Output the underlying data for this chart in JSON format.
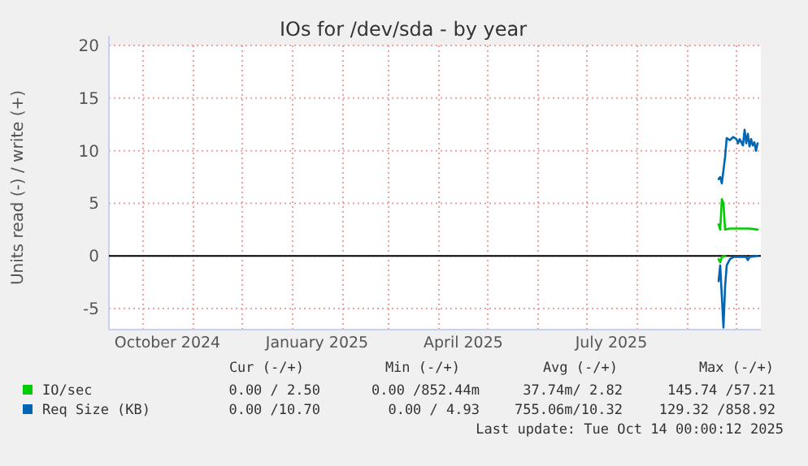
{
  "chart_data": {
    "type": "line",
    "title": "IOs for /dev/sda - by year",
    "ylabel": "Units read (-) / write (+)",
    "xlim": [
      "2024-09-10",
      "2025-10-16"
    ],
    "xticks": [
      {
        "value": "2024-10-01",
        "label": null
      },
      {
        "value": "2024-11-01",
        "label": null
      },
      {
        "value": "2024-12-01",
        "label": null
      },
      {
        "value": "2025-01-01",
        "label": null
      },
      {
        "value": "2025-02-01",
        "label": null
      },
      {
        "value": "2025-03-01",
        "label": null
      },
      {
        "value": "2025-04-01",
        "label": null
      },
      {
        "value": "2025-05-01",
        "label": null
      },
      {
        "value": "2025-06-01",
        "label": null
      },
      {
        "value": "2025-07-01",
        "label": null
      },
      {
        "value": "2025-08-01",
        "label": null
      },
      {
        "value": "2025-09-01",
        "label": null
      },
      {
        "value": "2025-10-01",
        "label": null
      },
      {
        "value": "2024-10-16",
        "label": "October 2024"
      },
      {
        "value": "2025-01-16",
        "label": "January 2025"
      },
      {
        "value": "2025-04-16",
        "label": "April 2025"
      },
      {
        "value": "2025-07-16",
        "label": "July 2025"
      }
    ],
    "ylim": [
      -7,
      20
    ],
    "yticks": [
      -5,
      0,
      5,
      10,
      15,
      20
    ],
    "grid": true,
    "legend": "bottom",
    "ref_lines": [
      {
        "axis": "y",
        "value": 0,
        "color": "#000000"
      }
    ],
    "series": [
      {
        "name": "IO/sec",
        "color": "#00cc00",
        "x": [
          "2025-09-20",
          "2025-09-21",
          "2025-09-22",
          "2025-09-23",
          "2025-09-24",
          "2025-09-27",
          "2025-10-01",
          "2025-10-05",
          "2025-10-09",
          "2025-10-14"
        ],
        "values": [
          3.0,
          2.5,
          5.4,
          5.0,
          2.5,
          2.6,
          2.6,
          2.6,
          2.6,
          2.5
        ]
      },
      {
        "color": "#00cc00",
        "x": [
          "2025-09-20",
          "2025-09-21",
          "2025-09-22",
          "2025-09-24"
        ],
        "values": [
          -0.3,
          -0.6,
          -0.1,
          0
        ]
      },
      {
        "name": "Req Size (KB)",
        "color": "#0066b3",
        "x": [
          "2025-09-20",
          "2025-09-21",
          "2025-09-22",
          "2025-09-24",
          "2025-09-25",
          "2025-09-27",
          "2025-09-29",
          "2025-10-01",
          "2025-10-02",
          "2025-10-03",
          "2025-10-05",
          "2025-10-06",
          "2025-10-07",
          "2025-10-08",
          "2025-10-09",
          "2025-10-10",
          "2025-10-11",
          "2025-10-12",
          "2025-10-13",
          "2025-10-14"
        ],
        "values": [
          7.3,
          7.5,
          6.9,
          9.4,
          11.2,
          11.0,
          11.3,
          11.1,
          10.7,
          11.1,
          10.5,
          12.0,
          10.7,
          11.6,
          10.4,
          11.1,
          10.5,
          10.8,
          10.0,
          10.7
        ]
      },
      {
        "color": "#0066b3",
        "x": [
          "2025-09-20",
          "2025-09-21",
          "2025-09-23",
          "2025-09-24",
          "2025-09-25",
          "2025-09-27",
          "2025-09-29",
          "2025-10-07",
          "2025-10-08",
          "2025-10-09",
          "2025-10-14"
        ],
        "values": [
          -2.4,
          -0.9,
          -6.8,
          -2.9,
          -0.9,
          -0.3,
          -0.1,
          -0.1,
          -0.4,
          -0.1,
          0
        ]
      }
    ],
    "annotations": [
      "Cur (-/+)",
      "Min (-/+)",
      "Avg (-/+)",
      "Max (-/+)",
      "0.00 / 2.50",
      "0.00 /852.44m",
      "37.74m/ 2.82",
      "145.74 /57.21",
      "0.00 /10.70",
      "0.00 / 4.93",
      "755.06m/10.32",
      "129.32 /858.92",
      "Last update: Tue Oct 14 00:00:12 2025"
    ]
  }
}
